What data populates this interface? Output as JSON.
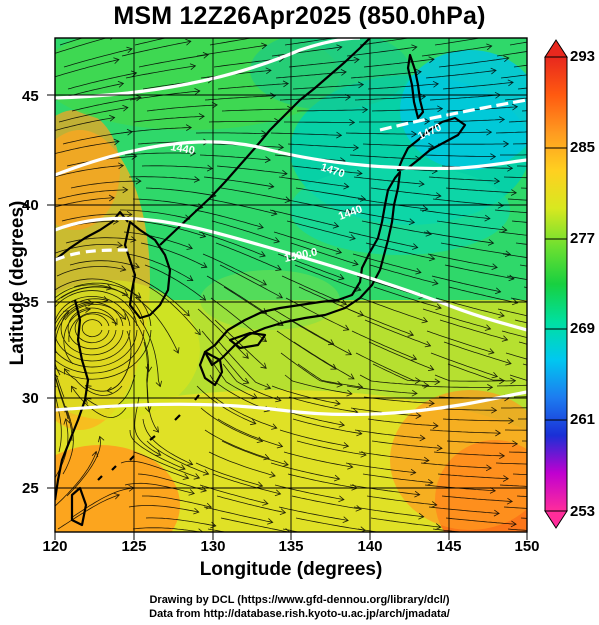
{
  "title": "MSM 12Z26Apr2025 (850.0hPa)",
  "xlabel": "Longitude (degrees)",
  "ylabel": "Latitude  (degrees)",
  "x_ticks": [
    "120",
    "125",
    "130",
    "135",
    "140",
    "145",
    "150"
  ],
  "y_ticks": [
    "45",
    "40",
    "35",
    "30",
    "25"
  ],
  "colorbar": {
    "ticks": [
      "293",
      "285",
      "277",
      "269",
      "261",
      "253"
    ],
    "range": [
      253,
      293
    ],
    "colors": [
      "#ff2d9b",
      "#c000d0",
      "#1a2fd6",
      "#1d7cf0",
      "#00c8f0",
      "#00e0a0",
      "#18d040",
      "#6ee030",
      "#d8e820",
      "#ffd020",
      "#ff9a20",
      "#ff5a10",
      "#e8281e"
    ]
  },
  "contour_labels": [
    "1500.0",
    "1470",
    "1440",
    "1470",
    "1440"
  ],
  "footer_line1": "Drawing by DCL (https://www.gfd-dennou.org/library/dcl/)",
  "footer_line2": "Data from http://database.rish.kyoto-u.ac.jp/arch/jmadata/",
  "map": {
    "extent": {
      "lon": [
        120,
        150
      ],
      "lat": [
        22.5,
        48
      ]
    }
  }
}
